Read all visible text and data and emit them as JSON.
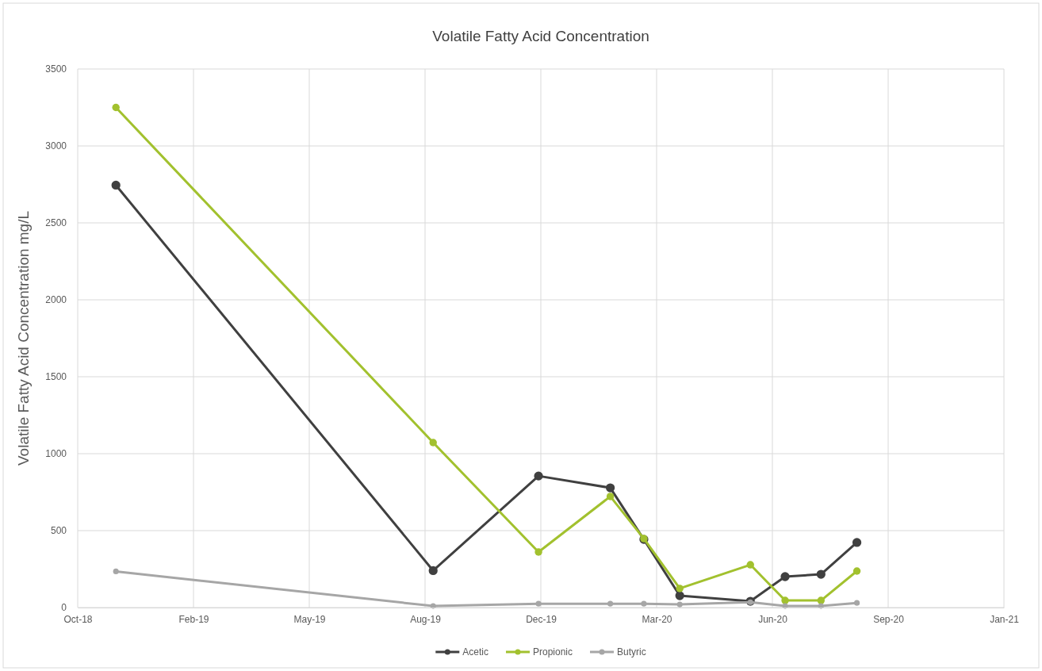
{
  "chart_data": {
    "type": "line",
    "title": "Volatile Fatty Acid Concentration",
    "ylabel": "Volatile Fatty Acid Concentration  mg/L",
    "x": [
      "2018-12-01",
      "2019-09-01",
      "2019-12-01",
      "2020-02-01",
      "2020-03-01",
      "2020-04-01",
      "2020-06-01",
      "2020-07-01",
      "2020-08-01",
      "2020-09-01"
    ],
    "series": [
      {
        "name": "Acetic",
        "color": "#404040",
        "values": [
          2745,
          240,
          855,
          778,
          443,
          77,
          41,
          201,
          216,
          423
        ]
      },
      {
        "name": "Propionic",
        "color": "#a2c12e",
        "values": [
          3250,
          1072,
          361,
          722,
          448,
          124,
          278,
          46,
          46,
          237
        ]
      },
      {
        "name": "Butyric",
        "color": "#a6a6a6",
        "values": [
          235,
          10,
          25,
          25,
          25,
          20,
          35,
          10,
          10,
          30
        ]
      }
    ],
    "xlim": [
      "2018-10-29",
      "2021-01-06"
    ],
    "xticks": [
      {
        "value": "2018-10-29",
        "label": "Oct-18"
      },
      {
        "value": "2019-02-06",
        "label": "Feb-19"
      },
      {
        "value": "2019-05-17",
        "label": "May-19"
      },
      {
        "value": "2019-08-25",
        "label": "Aug-19"
      },
      {
        "value": "2019-12-03",
        "label": "Dec-19"
      },
      {
        "value": "2020-03-12",
        "label": "Mar-20"
      },
      {
        "value": "2020-06-20",
        "label": "Jun-20"
      },
      {
        "value": "2020-09-28",
        "label": "Sep-20"
      },
      {
        "value": "2021-01-06",
        "label": "Jan-21"
      }
    ],
    "ylim": [
      0,
      3500
    ],
    "yticks": [
      0,
      500,
      1000,
      1500,
      2000,
      2500,
      3000,
      3500
    ],
    "grid": true,
    "legend": "bottom",
    "marker": "circle",
    "line_style": "solid"
  }
}
